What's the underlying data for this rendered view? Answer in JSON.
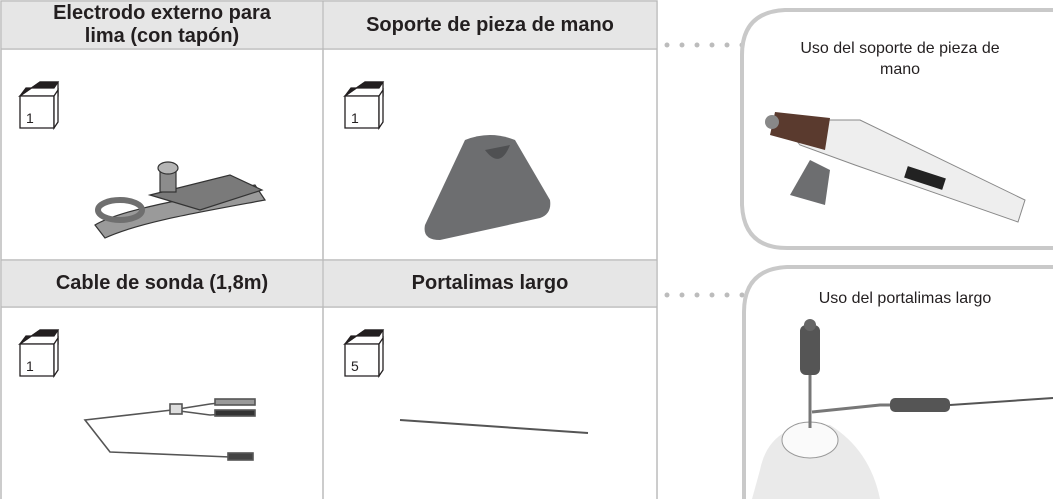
{
  "cells": [
    {
      "title": "Electrodo externo para lima (con tapón)",
      "quantity": 1
    },
    {
      "title": "Soporte de pieza de mano",
      "quantity": 1
    },
    {
      "title": "Cable de sonda (1,8m)",
      "quantity": 1
    },
    {
      "title": "Portalimas largo",
      "quantity": 5
    }
  ],
  "callouts": [
    {
      "text": "Uso del soporte de pieza de mano"
    },
    {
      "text": "Uso del portalimas largo"
    }
  ]
}
